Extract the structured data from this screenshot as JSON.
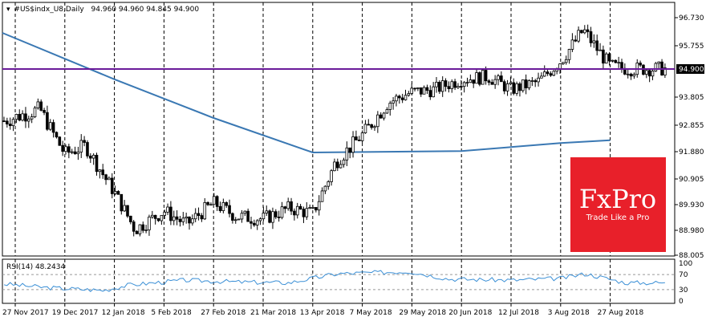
{
  "header": {
    "symbol": "#US$indx_U8,Daily",
    "quote": "94.960 94.960 94.845 94.900"
  },
  "price_axis": {
    "ticks": [
      "96.730",
      "95.755",
      "94.900",
      "93.805",
      "92.855",
      "91.880",
      "90.905",
      "89.930",
      "88.980",
      "88.005"
    ],
    "current_price": "94.900"
  },
  "rsi": {
    "label": "RSI(14) 48.2434",
    "ticks": [
      "100",
      "70",
      "30",
      "0"
    ]
  },
  "x_axis": {
    "ticks": [
      "27 Nov 2017",
      "19 Dec 2017",
      "12 Jan 2018",
      "5 Feb 2018",
      "27 Feb 2018",
      "21 Mar 2018",
      "13 Apr 2018",
      "7 May 2018",
      "29 May 2018",
      "20 Jun 2018",
      "12 Jul 2018",
      "3 Aug 2018",
      "27 Aug 2018"
    ]
  },
  "logo": {
    "brand": "FxPro",
    "tagline": "Trade Like a Pro",
    "color": "#e8202a"
  },
  "colors": {
    "level_line": "#6a1b9a",
    "moving_average": "#3a78b3",
    "rsi_line": "#3a8fd6",
    "candles": "#000000"
  },
  "chart_data": {
    "type": "candlestick",
    "ylim": [
      88.005,
      97.3
    ],
    "horizontal_level": 94.9,
    "moving_average": {
      "x": [
        "27 Nov 2017",
        "12 Jan 2018",
        "27 Feb 2018",
        "13 Apr 2018",
        "20 Jun 2018",
        "3 Aug 2018",
        "27 Aug 2018"
      ],
      "y": [
        96.2,
        94.5,
        93.1,
        91.85,
        91.9,
        92.2,
        92.3
      ]
    },
    "close_path": {
      "x": [
        "27 Nov 2017",
        "8 Dec 2017",
        "19 Dec 2017",
        "29 Dec 2017",
        "12 Jan 2018",
        "22 Jan 2018",
        "5 Feb 2018",
        "15 Feb 2018",
        "27 Feb 2018",
        "9 Mar 2018",
        "21 Mar 2018",
        "2 Apr 2018",
        "13 Apr 2018",
        "24 Apr 2018",
        "7 May 2018",
        "18 May 2018",
        "29 May 2018",
        "8 Jun 2018",
        "20 Jun 2018",
        "2 Jul 2018",
        "12 Jul 2018",
        "24 Jul 2018",
        "3 Aug 2018",
        "14 Aug 2018",
        "27 Aug 2018",
        "5 Sep 2018"
      ],
      "y": [
        93.0,
        93.4,
        91.8,
        92.1,
        90.4,
        89.0,
        89.7,
        89.2,
        90.0,
        89.5,
        89.4,
        89.8,
        89.6,
        91.5,
        92.5,
        93.6,
        94.0,
        94.1,
        94.5,
        94.6,
        94.1,
        94.4,
        95.2,
        96.3,
        95.0,
        94.9
      ]
    },
    "rsi": {
      "ylim": [
        0,
        100
      ],
      "levels": [
        30,
        70
      ],
      "value": 48.2434
    }
  }
}
